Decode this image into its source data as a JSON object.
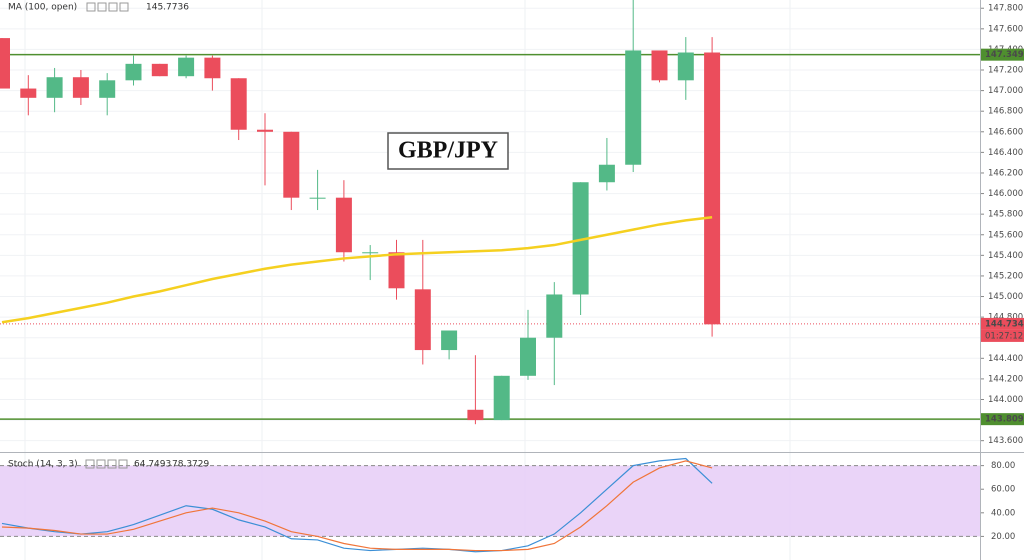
{
  "chart_data": [
    {
      "type": "candlestick",
      "title": "GBP/JPY",
      "open": [
        147.51,
        147.02,
        146.93,
        147.13,
        146.93,
        147.1,
        147.26,
        147.14,
        147.32,
        147.12,
        146.62,
        146.6,
        145.95,
        145.96,
        145.42,
        145.43,
        145.07,
        144.48,
        143.9,
        143.8,
        144.23,
        144.6,
        145.02,
        146.11,
        146.28,
        147.39,
        147.1,
        147.37
      ],
      "high": [
        147.51,
        147.15,
        147.22,
        147.2,
        147.17,
        147.34,
        147.26,
        147.34,
        147.34,
        147.12,
        146.78,
        146.6,
        146.23,
        146.13,
        145.5,
        145.55,
        145.55,
        144.67,
        144.43,
        144.23,
        144.87,
        145.14,
        146.11,
        146.54,
        147.88,
        147.39,
        147.52,
        147.52
      ],
      "low": [
        147.02,
        146.76,
        146.79,
        146.86,
        146.76,
        147.05,
        147.14,
        147.12,
        147.0,
        146.52,
        146.08,
        145.84,
        145.84,
        145.34,
        145.16,
        144.97,
        144.34,
        144.39,
        143.76,
        143.8,
        144.19,
        144.14,
        144.82,
        146.03,
        146.21,
        147.08,
        146.91,
        144.61
      ],
      "close": [
        147.02,
        146.93,
        147.13,
        146.93,
        147.1,
        147.26,
        147.14,
        147.32,
        147.12,
        146.62,
        146.6,
        145.96,
        145.96,
        145.43,
        145.43,
        145.08,
        144.48,
        144.67,
        143.8,
        144.23,
        144.6,
        145.02,
        146.11,
        146.28,
        147.39,
        147.1,
        147.37,
        144.73
      ],
      "up_color": "#53b987",
      "down_color": "#eb4d5c",
      "ylim": [
        143.49,
        147.88
      ],
      "yticks": [
        {
          "value": 143.6,
          "label": "143.600"
        },
        {
          "value": 143.8,
          "label": "143.800"
        },
        {
          "value": 144.0,
          "label": "144.000"
        },
        {
          "value": 144.2,
          "label": "144.200"
        },
        {
          "value": 144.4,
          "label": "144.400"
        },
        {
          "value": 144.6,
          "label": "144.600"
        },
        {
          "value": 144.8,
          "label": "144.800"
        },
        {
          "value": 145.0,
          "label": "145.000"
        },
        {
          "value": 145.2,
          "label": "145.200"
        },
        {
          "value": 145.4,
          "label": "145.400"
        },
        {
          "value": 145.6,
          "label": "145.600"
        },
        {
          "value": 145.8,
          "label": "145.800"
        },
        {
          "value": 146.0,
          "label": "146.000"
        },
        {
          "value": 146.2,
          "label": "146.200"
        },
        {
          "value": 146.4,
          "label": "146.400"
        },
        {
          "value": 146.6,
          "label": "146.600"
        },
        {
          "value": 146.8,
          "label": "146.800"
        },
        {
          "value": 147.0,
          "label": "147.000"
        },
        {
          "value": 147.2,
          "label": "147.200"
        },
        {
          "value": 147.4,
          "label": "147.400"
        },
        {
          "value": 147.6,
          "label": "147.600"
        },
        {
          "value": 147.8,
          "label": "147.800"
        }
      ],
      "ma": {
        "name": "MA (100, open)",
        "value": 145.7736,
        "color": "#f5d020",
        "values": [
          144.75,
          144.79,
          144.84,
          144.89,
          144.94,
          145.0,
          145.05,
          145.11,
          145.17,
          145.22,
          145.27,
          145.31,
          145.34,
          145.37,
          145.39,
          145.41,
          145.42,
          145.43,
          145.44,
          145.45,
          145.47,
          145.5,
          145.55,
          145.6,
          145.65,
          145.7,
          145.74,
          145.77
        ]
      },
      "hlines": [
        {
          "value": 147.349,
          "color": "#4f8f2f"
        },
        {
          "value": 143.809,
          "color": "#4f8f2f"
        }
      ],
      "last_price": 144.734,
      "countdown": "01:27:12"
    },
    {
      "type": "line",
      "name": "Stoch (14, 3, 3)",
      "series": [
        {
          "color": "#3c8fd6",
          "value": 64.7493,
          "values": [
            31,
            27,
            24,
            22,
            24,
            30,
            38,
            46,
            43,
            34,
            28,
            18,
            17,
            10,
            8,
            9,
            10,
            9,
            7,
            8,
            12,
            22,
            40,
            60,
            80,
            84,
            86,
            65
          ]
        },
        {
          "color": "#f0753a",
          "value": 78.3729,
          "values": [
            28,
            27,
            25,
            22,
            22,
            26,
            33,
            40,
            44,
            40,
            33,
            24,
            20,
            14,
            10,
            9,
            9,
            9,
            8,
            8,
            9,
            14,
            28,
            46,
            66,
            78,
            84,
            78
          ]
        }
      ],
      "band": [
        20,
        80
      ],
      "band_color": "#e6ccf7",
      "ylim": [
        0,
        89
      ],
      "yticks": [
        {
          "value": 20,
          "label": "20.00"
        },
        {
          "value": 40,
          "label": "40.00"
        },
        {
          "value": 60,
          "label": "60.00"
        },
        {
          "value": 80,
          "label": "80.00"
        }
      ]
    }
  ]
}
